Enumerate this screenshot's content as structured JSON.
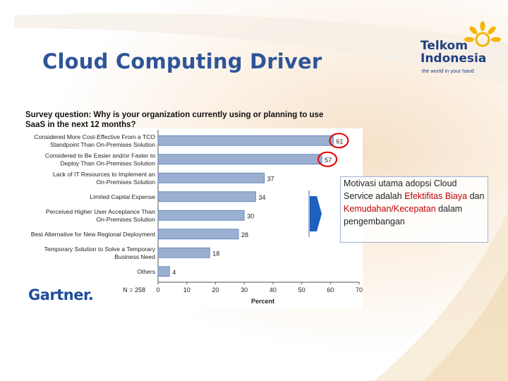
{
  "slide": {
    "title": "Cloud Computing Driver"
  },
  "logo": {
    "line1": "Telkom",
    "line2": "Indonesia",
    "tagline": "the world in your hand"
  },
  "survey_question": "Survey question: Why is your organization currently using or planning to use SaaS in the next 12 months?",
  "callout": {
    "part1": "Motivasi utama adopsi Cloud Service adalah ",
    "highlight1": "Efektifitas Biaya",
    "part2": " dan ",
    "highlight2": "Kemudahan/Kecepatan",
    "part3": " dalam pengembangan"
  },
  "source": "Gartner.",
  "colors": {
    "bar": "#9bb0d1",
    "bar_stroke": "#5b7bb3",
    "title": "#2f5597",
    "highlight_circle": "#e00000",
    "arrow": "#1f5fbf"
  },
  "chart_data": {
    "type": "bar",
    "orientation": "horizontal",
    "categories": [
      [
        "Considered More Cost-Effective From a TCO",
        "Standpoint Than On-Premises Solution"
      ],
      [
        "Considered to Be Easier and/or Faster to",
        "Deploy Than On-Premises Solution"
      ],
      [
        "Lack of IT Resources to Implement an",
        "On-Premises Solution"
      ],
      [
        "Limited Capital Expense"
      ],
      [
        "Perceived Higher User Acceptance Than",
        "On-Premises Solution"
      ],
      [
        "Best Alternative for New Regional Deployment"
      ],
      [
        "Temporary Solution to Solve a Temporary",
        "Business Need"
      ],
      [
        "Others"
      ]
    ],
    "values": [
      61,
      57,
      37,
      34,
      30,
      28,
      18,
      4
    ],
    "highlighted": [
      0,
      1
    ],
    "xlabel": "Percent",
    "xlim": [
      0,
      70
    ],
    "xticks": [
      0,
      10,
      20,
      30,
      40,
      50,
      60,
      70
    ],
    "n_label": "N = 258",
    "grid": false
  }
}
